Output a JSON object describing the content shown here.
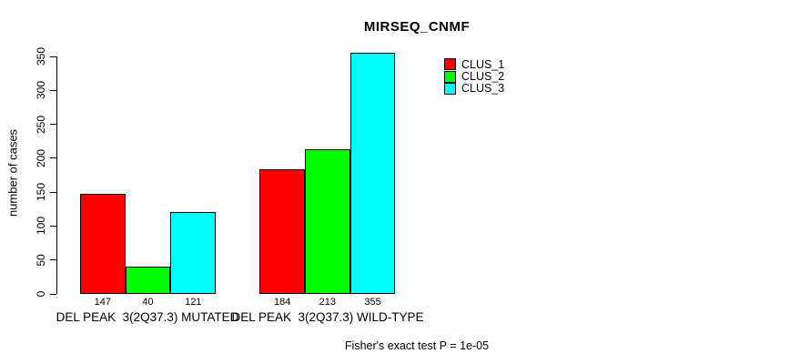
{
  "title": "MIRSEQ_CNMF",
  "footer": "Fisher's exact test P = 1e-05",
  "chart_data": {
    "type": "bar",
    "title": "MIRSEQ_CNMF",
    "xlabel": "",
    "ylabel": "number of cases",
    "ylim": [
      0,
      350
    ],
    "yticks": [
      0,
      50,
      100,
      150,
      200,
      250,
      300,
      350
    ],
    "grid": false,
    "legend_position": "top-right",
    "categories": [
      "DEL PEAK  3(2Q37.3) MUTATED",
      "DEL PEAK  3(2Q37.3) WILD-TYPE"
    ],
    "series": [
      {
        "name": "CLUS_1",
        "color": "#ff0000",
        "values": [
          147,
          184
        ]
      },
      {
        "name": "CLUS_2",
        "color": "#00ff00",
        "values": [
          40,
          213
        ]
      },
      {
        "name": "CLUS_3",
        "color": "#00ffff",
        "values": [
          121,
          355
        ]
      }
    ],
    "bar_value_labels": [
      [
        147,
        40,
        121
      ],
      [
        184,
        213,
        355
      ]
    ],
    "annotation": "Fisher's exact test P = 1e-05"
  }
}
